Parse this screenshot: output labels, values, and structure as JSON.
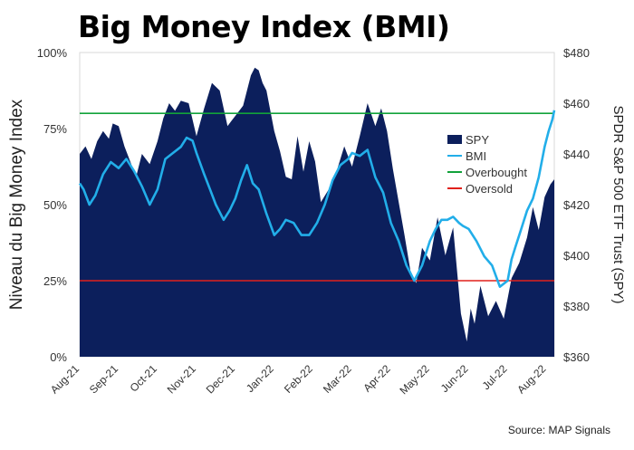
{
  "title": "Big Money Index (BMI)",
  "source": "Source: MAP Signals",
  "chart_data": {
    "type": "area",
    "title": "Big Money Index (BMI)",
    "ylabel": "Niveau du Big Money Index",
    "y2label": "SPDR S&P 500 ETF Trust (SPY)",
    "ylim": [
      0,
      100
    ],
    "y2lim": [
      360,
      480
    ],
    "ytick_labels": [
      "0%",
      "25%",
      "50%",
      "75%",
      "100%"
    ],
    "ytick_values": [
      0,
      25,
      50,
      75,
      100
    ],
    "y2tick_labels": [
      "$360",
      "$380",
      "$400",
      "$420",
      "$440",
      "$460",
      "$480"
    ],
    "y2tick_values": [
      360,
      380,
      400,
      420,
      440,
      460,
      480
    ],
    "x_labels": [
      "Aug-21",
      "Sep-21",
      "Oct-21",
      "Nov-21",
      "Dec-21",
      "Jan-22",
      "Feb-22",
      "Mar-22",
      "Apr-22",
      "May-22",
      "Jun-22",
      "Jul-22",
      "Aug-22"
    ],
    "x_range": [
      0,
      12.2
    ],
    "legend": [
      "SPY",
      "BMI",
      "Overbought",
      "Oversold"
    ],
    "legend_position": "right",
    "grid": false,
    "colors": {
      "spy": "#0c1f5c",
      "bmi": "#22aee9",
      "overbought": "#12a23a",
      "oversold": "#e0201c"
    },
    "overbought_level": 80,
    "oversold_level": 25,
    "series": [
      {
        "name": "SPY",
        "axis": "right",
        "x": [
          0,
          0.15,
          0.3,
          0.45,
          0.6,
          0.75,
          0.85,
          1.0,
          1.15,
          1.3,
          1.45,
          1.6,
          1.8,
          2.0,
          2.15,
          2.3,
          2.45,
          2.6,
          2.8,
          3.0,
          3.2,
          3.4,
          3.6,
          3.8,
          4.0,
          4.2,
          4.4,
          4.5,
          4.6,
          4.7,
          4.8,
          5.0,
          5.15,
          5.3,
          5.45,
          5.6,
          5.75,
          5.9,
          6.05,
          6.2,
          6.4,
          6.6,
          6.8,
          7.0,
          7.2,
          7.4,
          7.6,
          7.75,
          7.9,
          8.05,
          8.2,
          8.35,
          8.5,
          8.65,
          8.8,
          9.0,
          9.2,
          9.4,
          9.6,
          9.8,
          9.95,
          10.05,
          10.15,
          10.3,
          10.5,
          10.7,
          10.9,
          11.1,
          11.3,
          11.5,
          11.65,
          11.8,
          11.95,
          12.1,
          12.2
        ],
        "values": [
          440,
          443,
          438,
          445,
          449,
          446,
          452,
          451,
          443,
          437,
          431,
          440,
          436,
          445,
          454,
          460,
          457,
          461,
          460,
          447,
          458,
          468,
          465,
          451,
          455,
          459,
          471,
          474,
          473,
          468,
          465,
          449,
          441,
          431,
          430,
          447,
          433,
          445,
          437,
          421,
          426,
          433,
          443,
          435,
          447,
          460,
          451,
          458,
          449,
          434,
          421,
          408,
          394,
          389,
          403,
          398,
          415,
          400,
          411,
          377,
          366,
          379,
          373,
          388,
          376,
          382,
          375,
          391,
          397,
          407,
          419,
          410,
          423,
          428,
          430
        ]
      },
      {
        "name": "BMI",
        "axis": "left",
        "x": [
          0,
          0.1,
          0.25,
          0.4,
          0.6,
          0.8,
          1.0,
          1.2,
          1.4,
          1.6,
          1.8,
          2.0,
          2.2,
          2.4,
          2.6,
          2.75,
          2.9,
          3.0,
          3.2,
          3.35,
          3.5,
          3.7,
          3.85,
          4.0,
          4.15,
          4.3,
          4.45,
          4.6,
          4.8,
          5.0,
          5.15,
          5.3,
          5.5,
          5.7,
          5.9,
          6.1,
          6.3,
          6.5,
          6.7,
          6.9,
          7.0,
          7.2,
          7.4,
          7.6,
          7.8,
          8.0,
          8.2,
          8.4,
          8.6,
          8.8,
          9.0,
          9.15,
          9.3,
          9.45,
          9.6,
          9.75,
          9.85,
          10.0,
          10.2,
          10.4,
          10.6,
          10.8,
          11.0,
          11.1,
          11.2,
          11.35,
          11.5,
          11.65,
          11.8,
          11.95,
          12.05,
          12.15,
          12.2
        ],
        "values": [
          57,
          55,
          50,
          53,
          60,
          64,
          62,
          65,
          61,
          56,
          50,
          55,
          65,
          67,
          69,
          72,
          71,
          67,
          60,
          55,
          50,
          45,
          48,
          52,
          58,
          63,
          57,
          55,
          47,
          40,
          42,
          45,
          44,
          40,
          40,
          44,
          50,
          58,
          63,
          65,
          67,
          66,
          68,
          59,
          54,
          44,
          38,
          30,
          25,
          30,
          38,
          42,
          45,
          45,
          46,
          44,
          43,
          42,
          38,
          33,
          30,
          23,
          25,
          32,
          36,
          42,
          48,
          52,
          59,
          69,
          74,
          78,
          81
        ]
      },
      {
        "name": "Overbought",
        "axis": "left",
        "values": [
          80
        ]
      },
      {
        "name": "Oversold",
        "axis": "left",
        "values": [
          25
        ]
      }
    ]
  }
}
